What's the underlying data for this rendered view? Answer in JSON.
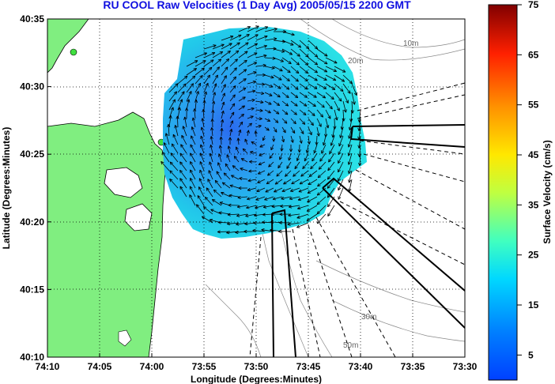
{
  "title": "RU COOL Raw Velocities (1 Day Avg) 2005/05/15 2200 GMT",
  "map": {
    "xlabel": "Longitude (Degrees:Minutes)",
    "ylabel": "Latitude (Degrees:Minutes)",
    "xticks": [
      "74:10",
      "74:05",
      "74:00",
      "73:55",
      "73:50",
      "73:45",
      "73:40",
      "73:35",
      "73:30"
    ],
    "yticks": [
      "40:35",
      "40:30",
      "40:25",
      "40:20",
      "40:15",
      "40:10"
    ],
    "contour_labels": [
      "10m",
      "20m",
      "30m",
      "50m"
    ],
    "land_color": "#80ee80",
    "grid": true
  },
  "colorbar": {
    "label": "Surface Velocity (cm/s)",
    "ticks": [
      "75",
      "65",
      "55",
      "45",
      "35",
      "25",
      "15",
      "5"
    ],
    "range": [
      0,
      75
    ]
  },
  "current_field": {
    "center_velocity_cm_s": 5,
    "edge_velocity_cm_s": 20
  }
}
